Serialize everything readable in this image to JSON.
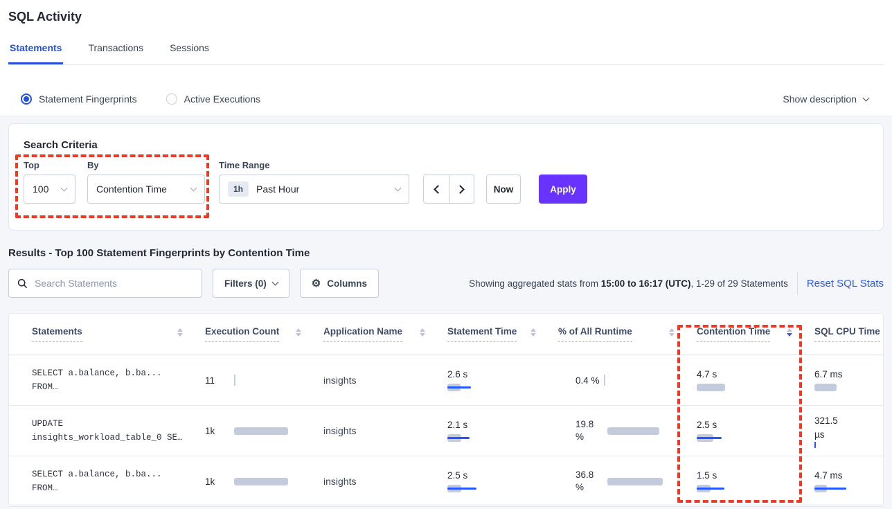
{
  "page": {
    "title": "SQL Activity"
  },
  "tabs": [
    {
      "label": "Statements",
      "active": true
    },
    {
      "label": "Transactions",
      "active": false
    },
    {
      "label": "Sessions",
      "active": false
    }
  ],
  "view_toggle": {
    "options": [
      {
        "label": "Statement Fingerprints",
        "selected": true
      },
      {
        "label": "Active Executions",
        "selected": false
      }
    ],
    "show_description_label": "Show description"
  },
  "search_criteria": {
    "heading": "Search Criteria",
    "top": {
      "label": "Top",
      "value": "100"
    },
    "by": {
      "label": "By",
      "value": "Contention Time"
    },
    "time_range": {
      "label": "Time Range",
      "badge": "1h",
      "value": "Past Hour"
    },
    "now_label": "Now",
    "apply_label": "Apply"
  },
  "results": {
    "heading": "Results - Top 100 Statement Fingerprints by Contention Time",
    "search_placeholder": "Search Statements",
    "filters_label": "Filters (0)",
    "columns_label": "Columns",
    "gear_icon": "⚙",
    "stats_prefix": "Showing aggregated stats from ",
    "stats_bold": "15:00 to 16:17 (UTC)",
    "stats_suffix": ", 1-29 of 29 Statements",
    "reset_link": "Reset SQL Stats"
  },
  "colors": {
    "accent_blue": "#2550e0",
    "link_blue": "#2d5bf6",
    "bar_blue": "#2457ff",
    "bar_gray": "#c4cbdc",
    "apply_purple": "#6933ff",
    "annotation_red": "#ee3a24"
  },
  "table": {
    "columns": [
      {
        "label": "Statements",
        "sort": "inactive"
      },
      {
        "label": "Execution Count",
        "sort": "inactive"
      },
      {
        "label": "Application Name",
        "sort": "inactive"
      },
      {
        "label": "Statement Time",
        "sort": "inactive"
      },
      {
        "label": "% of All Runtime",
        "sort": "inactive"
      },
      {
        "label": "Contention Time",
        "sort": "desc"
      },
      {
        "label": "SQL CPU Time",
        "sort": null
      }
    ],
    "rows": [
      {
        "statement": [
          "SELECT a.balance, b.ba...",
          "FROM…"
        ],
        "execution": {
          "text": "11",
          "tick": "gray"
        },
        "application": "insights",
        "statement_time": {
          "text": "2.6 s",
          "gray": 19,
          "blue": 34
        },
        "pct_runtime": {
          "text": "0.4 %",
          "tick": "gray",
          "wrap": false
        },
        "contention_time": {
          "text": "4.7 s",
          "gray": 41,
          "blue": 0
        },
        "sql_cpu_time": {
          "text": "6.7 ms",
          "gray": 32,
          "blue": 0,
          "wrap": false
        }
      },
      {
        "statement": [
          "UPDATE",
          "insights_workload_table_0 SE…"
        ],
        "execution": {
          "text": "1k",
          "gray": 78,
          "blue": 0
        },
        "application": "insights",
        "statement_time": {
          "text": "2.1 s",
          "gray": 20,
          "blue": 32
        },
        "pct_runtime": {
          "text": "19.8 %",
          "gray": 75,
          "blue": 0,
          "wrap": true
        },
        "contention_time": {
          "text": "2.5 s",
          "gray": 24,
          "blue": 36
        },
        "sql_cpu_time": {
          "text": "321.5 µs",
          "tick": "blue",
          "wrap": true
        }
      },
      {
        "statement": [
          "SELECT a.balance, b.ba...",
          "FROM…"
        ],
        "execution": {
          "text": "1k",
          "gray": 78,
          "blue": 0
        },
        "application": "insights",
        "statement_time": {
          "text": "2.5 s",
          "gray": 20,
          "blue": 42
        },
        "pct_runtime": {
          "text": "36.8 %",
          "gray": 80,
          "blue": 0,
          "wrap": true
        },
        "contention_time": {
          "text": "1.5 s",
          "gray": 20,
          "blue": 40
        },
        "sql_cpu_time": {
          "text": "4.7 ms",
          "gray": 18,
          "blue": 46,
          "wrap": false
        }
      }
    ]
  }
}
